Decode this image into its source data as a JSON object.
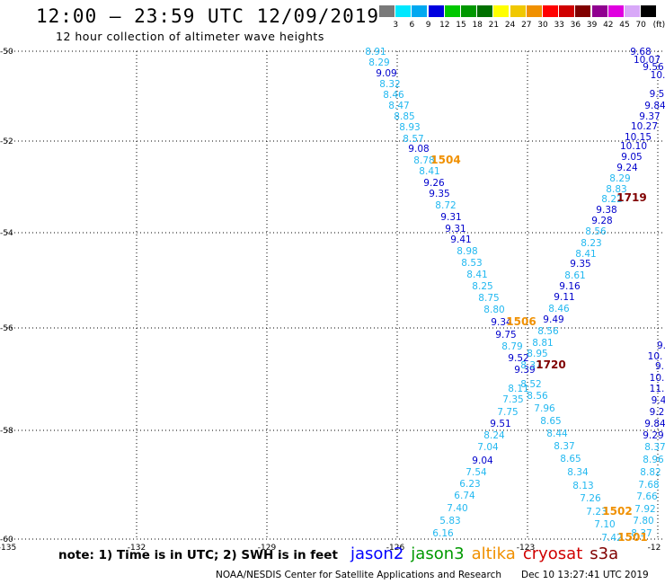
{
  "header": {
    "title": "12:00 – 23:59 UTC 12/09/2019",
    "subtitle": "12 hour collection of altimeter wave heights"
  },
  "legend": {
    "unit": "(ft)",
    "levels": [
      "3",
      "6",
      "9",
      "12",
      "15",
      "18",
      "21",
      "24",
      "27",
      "30",
      "33",
      "36",
      "39",
      "42",
      "45",
      "70"
    ],
    "colors": [
      "#7a7a7a",
      "#00e8ff",
      "#00a8f0",
      "#0000e0",
      "#00c800",
      "#009800",
      "#007000",
      "#ffff00",
      "#f0c800",
      "#f09000",
      "#ff0000",
      "#d00000",
      "#800000",
      "#900090",
      "#e000e0",
      "#d8a8f8",
      "#000000"
    ]
  },
  "axes": {
    "lon_ticks": [
      "-135",
      "-132",
      "-129",
      "-126",
      "-123",
      "-12"
    ],
    "lat_ticks": [
      "-50",
      "-52",
      "-54",
      "-56",
      "-58",
      "-60"
    ]
  },
  "tracks": [
    {
      "satellite": "jason2",
      "color": "#0000cc",
      "points": [
        [
          "9.09",
          430,
          81
        ],
        [
          "9.08",
          466,
          165
        ],
        [
          "9.26",
          483,
          203
        ],
        [
          "9.35",
          489,
          215
        ],
        [
          "9.31",
          502,
          241
        ],
        [
          "9.31",
          507,
          254
        ],
        [
          "9.41",
          513,
          266
        ],
        [
          "9.34",
          558,
          358
        ],
        [
          "9.75",
          563,
          372
        ],
        [
          "9.52",
          577,
          398
        ],
        [
          "9.39",
          584,
          411
        ],
        [
          "9.51",
          557,
          471
        ],
        [
          "9.04",
          537,
          512
        ],
        [
          "9.68",
          713,
          57
        ],
        [
          "10.07",
          720,
          66
        ],
        [
          "9.56",
          727,
          74
        ],
        [
          "10.",
          732,
          83
        ],
        [
          "9.5",
          731,
          104
        ],
        [
          "9.84",
          729,
          117
        ],
        [
          "9.37",
          723,
          129
        ],
        [
          "10.27",
          717,
          140
        ],
        [
          "10.15",
          710,
          152
        ],
        [
          "10.10",
          705,
          162
        ],
        [
          "9.05",
          703,
          174
        ],
        [
          "9.24",
          698,
          186
        ],
        [
          "9.38",
          675,
          233
        ],
        [
          "9.28",
          670,
          245
        ],
        [
          "9.35",
          646,
          293
        ],
        [
          "9.16",
          634,
          318
        ],
        [
          "9.11",
          628,
          330
        ],
        [
          "9.49",
          616,
          355
        ],
        [
          "9.",
          736,
          384
        ],
        [
          "10.",
          729,
          396
        ],
        [
          "9.",
          734,
          407
        ],
        [
          "10.",
          731,
          420
        ],
        [
          "11.",
          731,
          432
        ],
        [
          "9.4",
          733,
          445
        ],
        [
          "9.2",
          731,
          458
        ],
        [
          "9.84",
          729,
          471
        ],
        [
          "9.29",
          727,
          484
        ]
      ]
    },
    {
      "satellite": "jason3",
      "color": "#22b8f0",
      "points": [
        [
          "8.91",
          418,
          57
        ],
        [
          "8.29",
          422,
          69
        ],
        [
          "8.32",
          434,
          93
        ],
        [
          "8.46",
          438,
          105
        ],
        [
          "8.47",
          444,
          117
        ],
        [
          "8.85",
          450,
          129
        ],
        [
          "8.93",
          456,
          141
        ],
        [
          "8.57",
          460,
          154
        ],
        [
          "8.78",
          472,
          178
        ],
        [
          "8.41",
          478,
          190
        ],
        [
          "8.72",
          496,
          228
        ],
        [
          "8.98",
          520,
          279
        ],
        [
          "8.53",
          525,
          292
        ],
        [
          "8.41",
          531,
          305
        ],
        [
          "8.25",
          537,
          318
        ],
        [
          "8.75",
          544,
          331
        ],
        [
          "8.80",
          550,
          344
        ],
        [
          "8.79",
          570,
          385
        ],
        [
          "8.11",
          577,
          432
        ],
        [
          "7.35",
          571,
          444
        ],
        [
          "7.75",
          565,
          458
        ],
        [
          "8.24",
          550,
          484
        ],
        [
          "7.04",
          543,
          497
        ],
        [
          "7.54",
          530,
          525
        ],
        [
          "6.23",
          523,
          538
        ],
        [
          "6.74",
          517,
          551
        ],
        [
          "7.40",
          509,
          565
        ],
        [
          "5.83",
          501,
          579
        ],
        [
          "6.16",
          493,
          593
        ],
        [
          "8.29",
          690,
          198
        ],
        [
          "8.83",
          686,
          210
        ],
        [
          "8.22",
          681,
          221
        ],
        [
          "8.56",
          663,
          257
        ],
        [
          "8.23",
          658,
          270
        ],
        [
          "8.41",
          652,
          282
        ],
        [
          "8.61",
          640,
          306
        ],
        [
          "8.46",
          622,
          343
        ],
        [
          "8.56",
          610,
          368
        ],
        [
          "8.81",
          604,
          381
        ],
        [
          "8.95",
          598,
          393
        ],
        [
          "8.52",
          591,
          427
        ],
        [
          "8.56",
          598,
          440
        ],
        [
          "7.96",
          606,
          454
        ],
        [
          "8.65",
          613,
          468
        ],
        [
          "8.44",
          620,
          482
        ],
        [
          "8.37",
          628,
          496
        ],
        [
          "8.65",
          635,
          510
        ],
        [
          "8.34",
          643,
          525
        ],
        [
          "8.13",
          649,
          540
        ],
        [
          "7.26",
          657,
          554
        ],
        [
          "7.23",
          664,
          569
        ],
        [
          "7.10",
          673,
          583
        ],
        [
          "7.42",
          681,
          598
        ],
        [
          "8.37",
          729,
          497
        ],
        [
          "8.96",
          727,
          511
        ],
        [
          "8.82",
          724,
          525
        ],
        [
          "7.68",
          722,
          539
        ],
        [
          "7.66",
          720,
          552
        ],
        [
          "7.92",
          718,
          566
        ],
        [
          "7.80",
          716,
          579
        ],
        [
          "8.37",
          714,
          593
        ],
        [
          "8.37",
          591,
          406
        ]
      ]
    }
  ],
  "time_labels": [
    {
      "text": "1504",
      "x": 496,
      "y": 182,
      "color": "#f09000"
    },
    {
      "text": "1719",
      "x": 703,
      "y": 224,
      "color": "#800000"
    },
    {
      "text": "1506",
      "x": 580,
      "y": 362,
      "color": "#f09000"
    },
    {
      "text": "1720",
      "x": 613,
      "y": 410,
      "color": "#800000"
    },
    {
      "text": "1502",
      "x": 687,
      "y": 573,
      "color": "#f09000"
    },
    {
      "text": "1501",
      "x": 704,
      "y": 602,
      "color": "#f09000"
    }
  ],
  "footer": {
    "note": "note: 1) Time is in UTC; 2) SWH is in feet",
    "satellites": [
      {
        "name": "jason2",
        "color": "#0000ff"
      },
      {
        "name": "jason3",
        "color": "#009900"
      },
      {
        "name": "altika",
        "color": "#f09000"
      },
      {
        "name": "cryosat",
        "color": "#d00000"
      },
      {
        "name": "s3a",
        "color": "#800000"
      }
    ],
    "credit": "NOAA/NESDIS Center for Satellite Applications and Research",
    "timestamp": "Dec 10 13:27:41 UTC 2019"
  }
}
